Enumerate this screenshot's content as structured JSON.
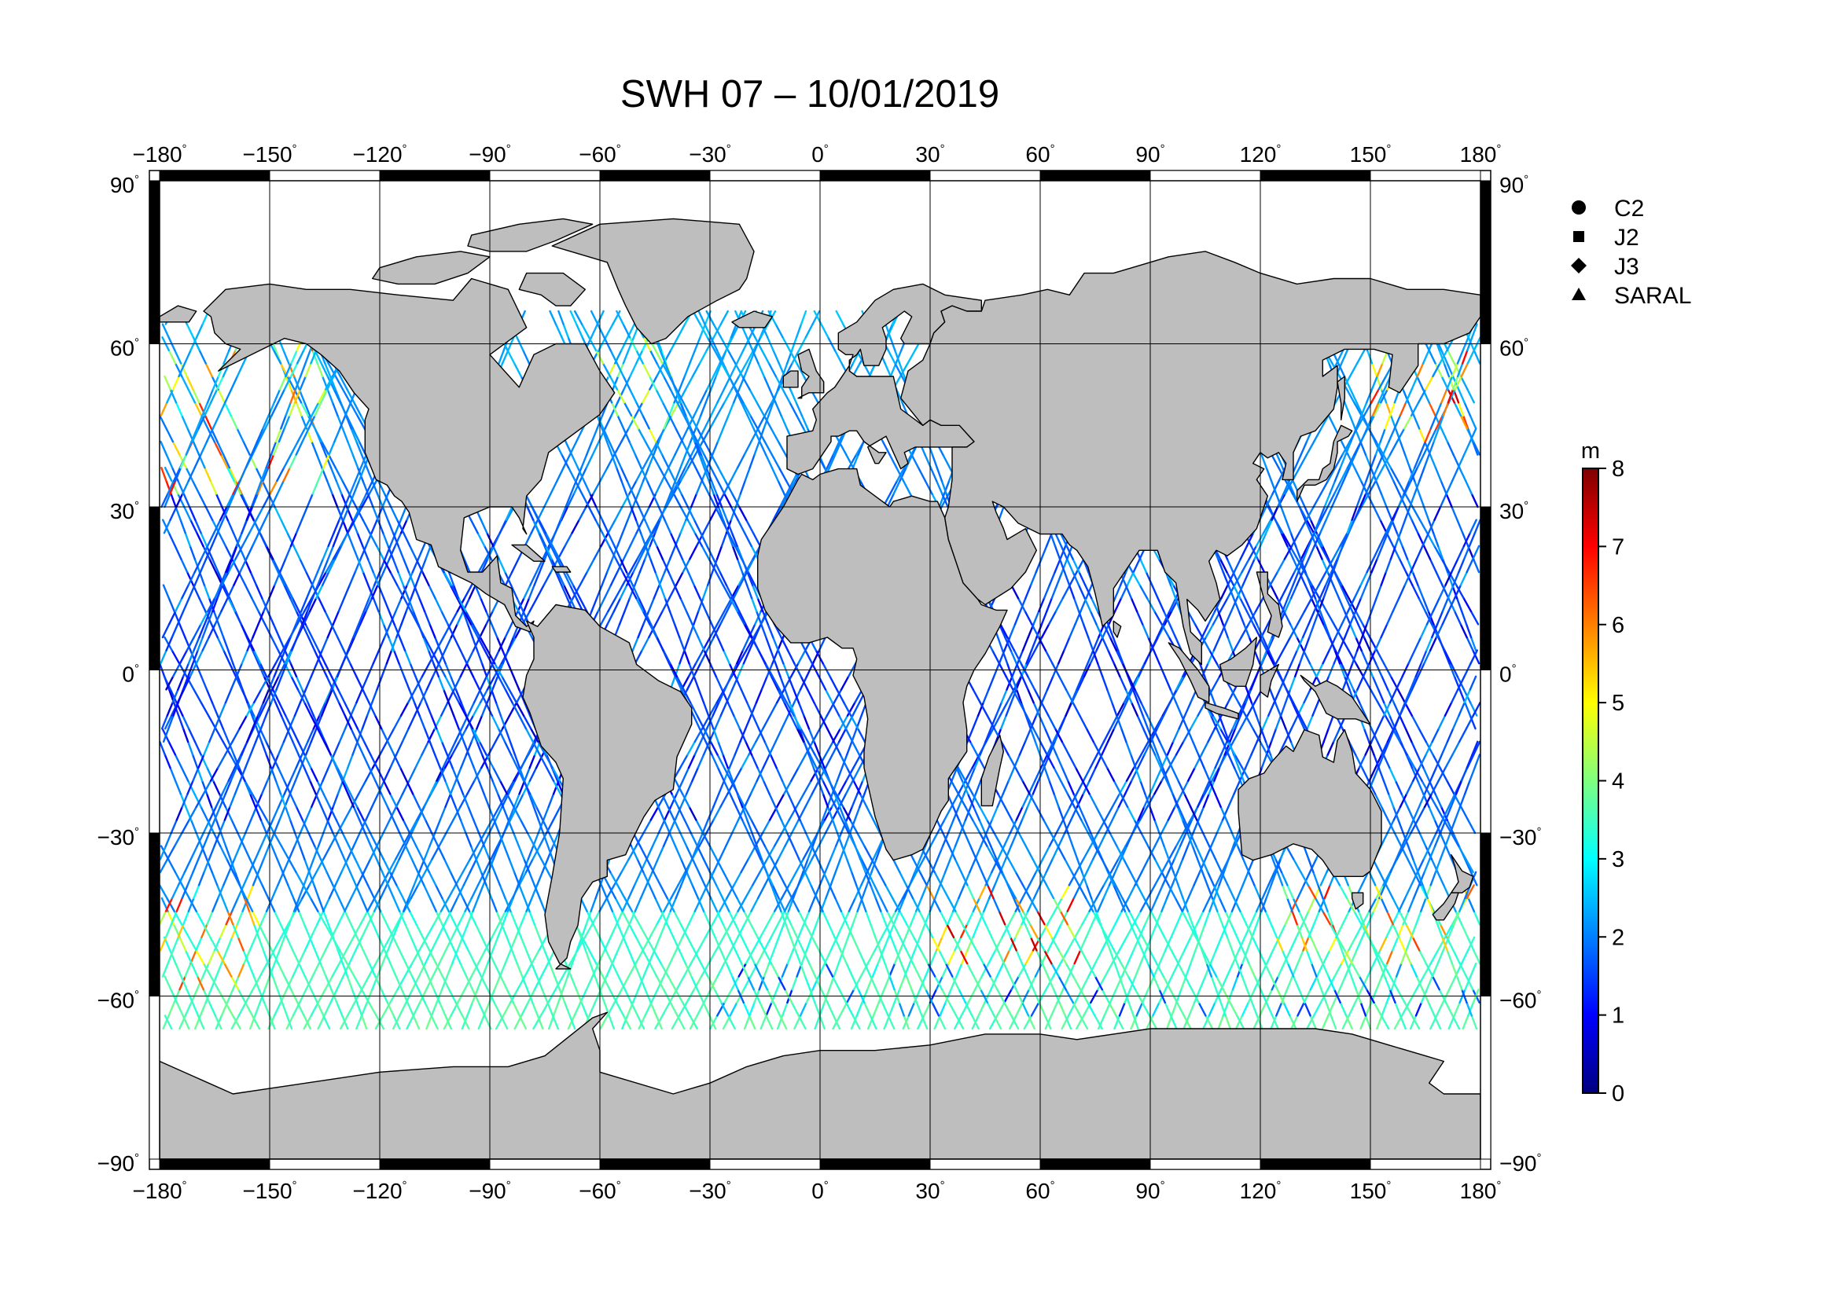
{
  "title": "SWH 07 – 10/01/2019",
  "map": {
    "projection": "equirectangular",
    "lon_range": [
      -180,
      180
    ],
    "lat_range": [
      -90,
      90
    ],
    "lon_ticks": [
      "−180",
      "−150",
      "−120",
      "−90",
      "−60",
      "−30",
      "0",
      "30",
      "60",
      "90",
      "120",
      "150",
      "180"
    ],
    "lat_ticks": [
      "90",
      "60",
      "30",
      "0",
      "−30",
      "−60",
      "−90"
    ],
    "degree_mark": "°",
    "land_color": "#bebebe",
    "ocean_color": "#ffffff",
    "grid": true
  },
  "legend": {
    "items": [
      {
        "label": "C2",
        "marker": "circle"
      },
      {
        "label": "J2",
        "marker": "square"
      },
      {
        "label": "J3",
        "marker": "diamond"
      },
      {
        "label": "SARAL",
        "marker": "triangle"
      }
    ]
  },
  "colorbar": {
    "unit": "m",
    "min": 0,
    "max": 8,
    "ticks": [
      "8",
      "7",
      "6",
      "5",
      "4",
      "3",
      "2",
      "1",
      "0"
    ],
    "colormap": "jet",
    "stops": [
      "#00007f",
      "#0000ff",
      "#007fff",
      "#00ffff",
      "#7fff7f",
      "#ffff00",
      "#ff7f00",
      "#ff0000",
      "#7f0000"
    ]
  },
  "chart_data": {
    "type": "scatter",
    "title": "SWH 07 – 10/01/2019",
    "xlabel": "",
    "ylabel": "",
    "xlim": [
      -180,
      180
    ],
    "ylim": [
      -90,
      90
    ],
    "color_variable": "significant wave height",
    "color_range": [
      0,
      8
    ],
    "series": [
      {
        "name": "C2"
      },
      {
        "name": "J2"
      },
      {
        "name": "J3"
      },
      {
        "name": "SARAL"
      }
    ],
    "regions": [
      {
        "lon": [
          -180,
          -135
        ],
        "lat": [
          30,
          60
        ],
        "swh": [
          3,
          7
        ]
      },
      {
        "lon": [
          -60,
          -40
        ],
        "lat": [
          40,
          60
        ],
        "swh": [
          3,
          5
        ]
      },
      {
        "lon": [
          150,
          180
        ],
        "lat": [
          40,
          58
        ],
        "swh": [
          4,
          7.5
        ]
      },
      {
        "lon": [
          -180,
          -150
        ],
        "lat": [
          -60,
          -40
        ],
        "swh": [
          3,
          7
        ]
      },
      {
        "lon": [
          30,
          70
        ],
        "lat": [
          -55,
          -40
        ],
        "swh": [
          3,
          7.5
        ]
      },
      {
        "lon": [
          125,
          180
        ],
        "lat": [
          -55,
          -40
        ],
        "swh": [
          3,
          7
        ]
      },
      {
        "lon": [
          -180,
          180
        ],
        "lat": [
          -30,
          30
        ],
        "swh": [
          0.5,
          2.5
        ]
      },
      {
        "lon": [
          -30,
          180
        ],
        "lat": [
          -65,
          -55
        ],
        "swh": [
          1,
          4
        ]
      }
    ]
  }
}
